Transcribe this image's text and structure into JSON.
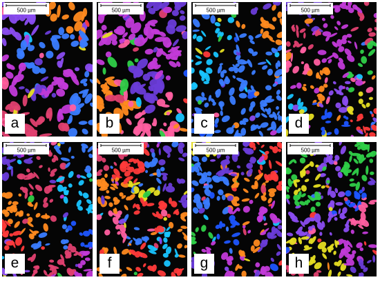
{
  "panels": [
    {
      "label": "a",
      "scale_bar": "500 µm"
    },
    {
      "label": "b",
      "scale_bar": "500 µm"
    },
    {
      "label": "c",
      "scale_bar": "500 µm"
    },
    {
      "label": "d",
      "scale_bar": "500 µm"
    },
    {
      "label": "e",
      "scale_bar": "500 µm"
    },
    {
      "label": "f",
      "scale_bar": "500 µm"
    },
    {
      "label": "g",
      "scale_bar": "500 µm"
    },
    {
      "label": "h",
      "scale_bar": "500 µm"
    }
  ]
}
